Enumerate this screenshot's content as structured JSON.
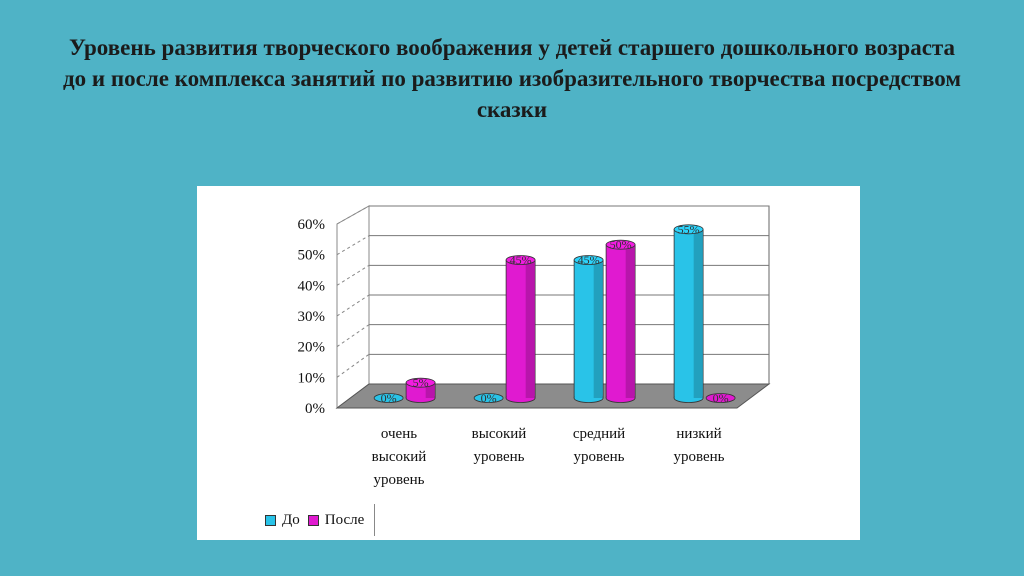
{
  "slide": {
    "title": "Уровень развития творческого воображения у детей старшего дошкольного возраста до и после комплекса занятий по развитию изобразительного творчества посредством сказки"
  },
  "colors": {
    "background": "#4fb3c6",
    "series_do": "#29c3e8",
    "series_posle": "#e01ad0"
  },
  "chart_data": {
    "type": "bar",
    "style": "3d-cylinder",
    "categories": [
      [
        "очень",
        "высокий",
        "уровень"
      ],
      [
        "высокий",
        "уровень"
      ],
      [
        "средний",
        "уровень"
      ],
      [
        "низкий",
        "уровень"
      ]
    ],
    "series": [
      {
        "name": "До",
        "values": [
          0,
          0,
          45,
          55
        ],
        "labels": [
          "0%",
          "0%",
          "45%",
          "55%"
        ]
      },
      {
        "name": "После",
        "values": [
          5,
          45,
          50,
          0
        ],
        "labels": [
          "5%",
          "45%",
          "50%",
          "0%"
        ]
      }
    ],
    "y_ticks": [
      "0%",
      "10%",
      "20%",
      "30%",
      "40%",
      "50%",
      "60%"
    ],
    "ylim": [
      0,
      60
    ],
    "grid": true,
    "legend_position": "bottom",
    "title": "",
    "xlabel": "",
    "ylabel": ""
  }
}
